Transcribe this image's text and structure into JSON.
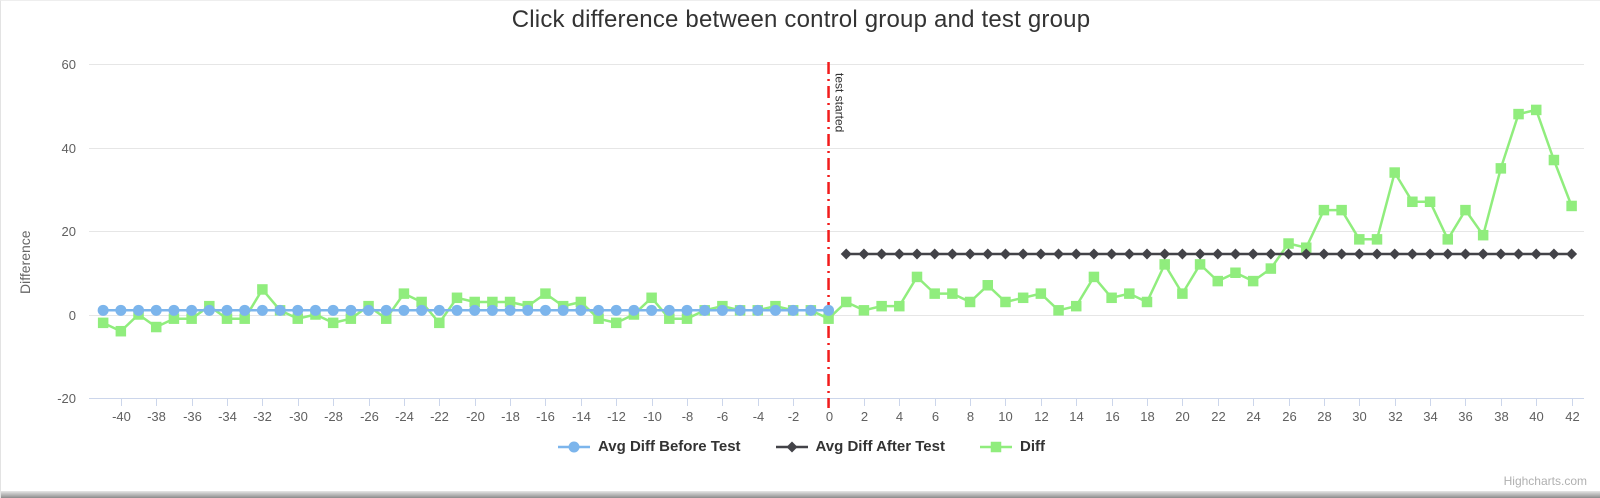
{
  "page": {
    "credits": "Highcharts.com"
  },
  "colors": {
    "grid": "#e6e6e6",
    "axis": "#ccd6eb",
    "tick_label": "#606060",
    "title": "#333333",
    "plotline_label": "#333333",
    "credits": "#b0b0b0"
  },
  "chart_data": {
    "type": "line",
    "title": "Click difference between control group and test group",
    "xlabel": "",
    "ylabel": "Difference",
    "ylim": [
      -20,
      60
    ],
    "yticks": [
      -20,
      0,
      20,
      40,
      60
    ],
    "xlim": [
      -41.8,
      42.7
    ],
    "xticks": [
      -40,
      -38,
      -36,
      -34,
      -32,
      -30,
      -28,
      -26,
      -24,
      -22,
      -20,
      -18,
      -16,
      -14,
      -12,
      -10,
      -8,
      -6,
      -4,
      -2,
      0,
      2,
      4,
      6,
      8,
      10,
      12,
      14,
      16,
      18,
      20,
      22,
      24,
      26,
      28,
      30,
      32,
      34,
      36,
      38,
      40,
      42
    ],
    "grid": "horizontal",
    "legend_position": "bottom-center",
    "plotline": {
      "x": 0,
      "label": "test started",
      "color": "#f21c1c",
      "style": "dash-dot"
    },
    "series": [
      {
        "name": "Avg Diff Before Test",
        "color": "#7cb5ec",
        "marker": "circle",
        "x_start": -41,
        "x_step": 1,
        "y": [
          1,
          1,
          1,
          1,
          1,
          1,
          1,
          1,
          1,
          1,
          1,
          1,
          1,
          1,
          1,
          1,
          1,
          1,
          1,
          1,
          1,
          1,
          1,
          1,
          1,
          1,
          1,
          1,
          1,
          1,
          1,
          1,
          1,
          1,
          1,
          1,
          1,
          1,
          1,
          1,
          1,
          1
        ]
      },
      {
        "name": "Avg Diff After Test",
        "color": "#434348",
        "marker": "diamond",
        "x_start": 1,
        "x_step": 1,
        "y": [
          14.5,
          14.5,
          14.5,
          14.5,
          14.5,
          14.5,
          14.5,
          14.5,
          14.5,
          14.5,
          14.5,
          14.5,
          14.5,
          14.5,
          14.5,
          14.5,
          14.5,
          14.5,
          14.5,
          14.5,
          14.5,
          14.5,
          14.5,
          14.5,
          14.5,
          14.5,
          14.5,
          14.5,
          14.5,
          14.5,
          14.5,
          14.5,
          14.5,
          14.5,
          14.5,
          14.5,
          14.5,
          14.5,
          14.5,
          14.5,
          14.5,
          14.5
        ]
      },
      {
        "name": "Diff",
        "color": "#90ed7d",
        "marker": "square",
        "x_start": -41,
        "x_step": 1,
        "y": [
          -2,
          -4,
          0,
          -3,
          -1,
          -1,
          2,
          -1,
          -1,
          6,
          1,
          -1,
          0,
          -2,
          -1,
          2,
          -1,
          5,
          3,
          -2,
          4,
          3,
          3,
          3,
          2,
          5,
          2,
          3,
          -1,
          -2,
          0,
          4,
          -1,
          -1,
          1,
          2,
          1,
          1,
          2,
          1,
          1,
          -1,
          3,
          1,
          2,
          2,
          9,
          5,
          5,
          3,
          7,
          3,
          4,
          5,
          1,
          2,
          9,
          4,
          5,
          3,
          12,
          5,
          12,
          8,
          10,
          8,
          11,
          17,
          16,
          25,
          25,
          18,
          18,
          34,
          27,
          27,
          18,
          25,
          19,
          35,
          48,
          49,
          37,
          26
        ]
      }
    ]
  }
}
